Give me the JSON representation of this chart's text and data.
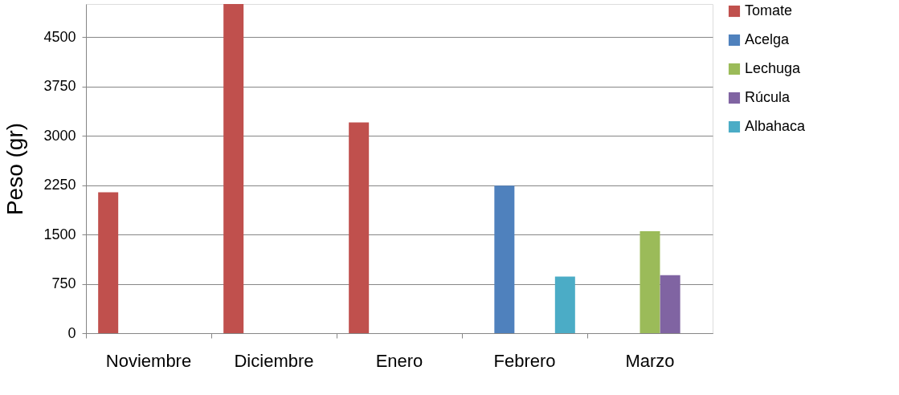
{
  "chart_data": {
    "type": "bar",
    "ylabel": "Peso (gr)",
    "categories": [
      "Noviembre",
      "Diciembre",
      "Enero",
      "Febrero",
      "Marzo"
    ],
    "series": [
      {
        "name": "Tomate",
        "color": "#c0504d",
        "values": [
          2140,
          5000,
          3200,
          null,
          null
        ]
      },
      {
        "name": "Acelga",
        "color": "#4f81bd",
        "values": [
          null,
          null,
          null,
          2240,
          null
        ]
      },
      {
        "name": "Lechuga",
        "color": "#9bbb59",
        "values": [
          null,
          null,
          null,
          null,
          1550
        ]
      },
      {
        "name": "Rúcula",
        "color": "#8064a2",
        "values": [
          null,
          null,
          null,
          null,
          880
        ]
      },
      {
        "name": "Albahaca",
        "color": "#4bacc6",
        "values": [
          null,
          null,
          null,
          860,
          null
        ]
      }
    ],
    "ylim": [
      0,
      5000
    ],
    "yticks": [
      0,
      750,
      1500,
      2250,
      3000,
      3750,
      4500
    ],
    "grid": "y",
    "legend": "right"
  }
}
